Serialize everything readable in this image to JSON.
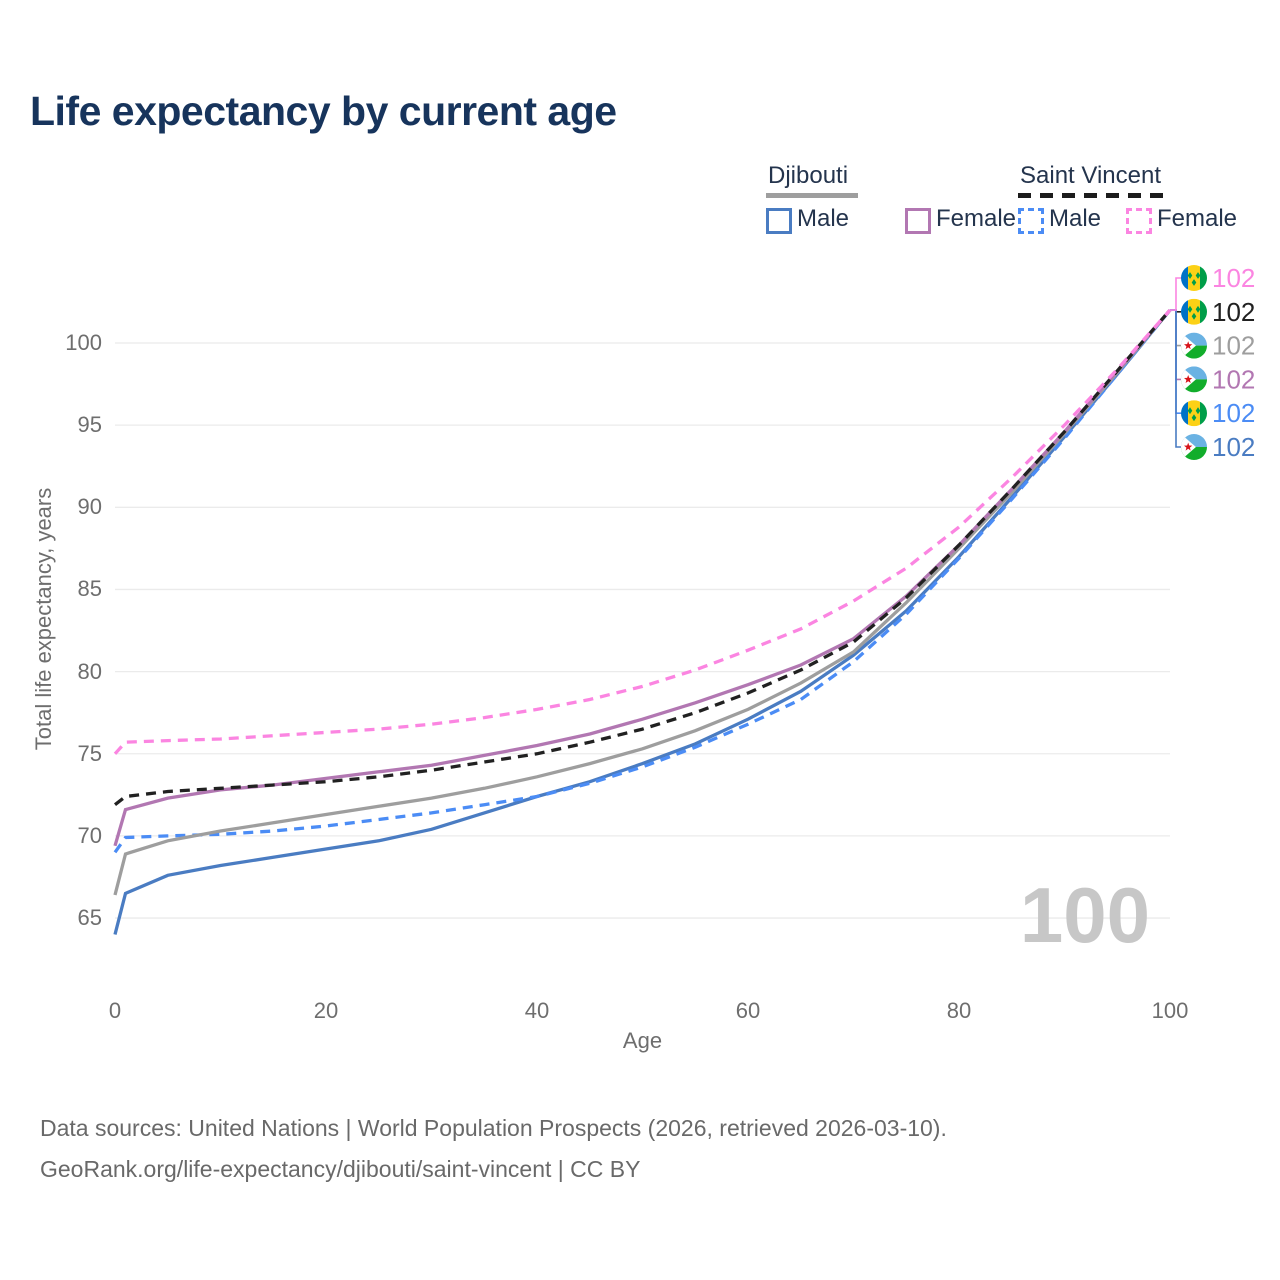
{
  "header": {
    "title": "Life expectancy by current age"
  },
  "legend": {
    "groups": [
      {
        "id": "djibouti",
        "title": "Djibouti",
        "line_style": "solid",
        "line_color": "#9e9e9e",
        "items": [
          {
            "label": "Male",
            "series": "dj_male"
          },
          {
            "label": "Female",
            "series": "dj_female"
          }
        ]
      },
      {
        "id": "saint-vincent",
        "title": "Saint Vincent",
        "line_style": "dashed",
        "line_color": "#1c1c1c",
        "items": [
          {
            "label": "Male",
            "series": "sv_male"
          },
          {
            "label": "Female",
            "series": "sv_female"
          }
        ]
      }
    ]
  },
  "chart_data": {
    "type": "line",
    "title": "Life expectancy by current age",
    "xlabel": "Age",
    "ylabel": "Total life expectancy, years",
    "xlim": [
      0,
      100
    ],
    "ylim": [
      63,
      103
    ],
    "x_ticks": [
      0,
      20,
      40,
      60,
      80,
      100
    ],
    "y_ticks": [
      65,
      70,
      75,
      80,
      85,
      90,
      95,
      100
    ],
    "grid": "horizontal",
    "legend_position": "top-right",
    "watermark": "100",
    "ages": [
      0,
      1,
      5,
      10,
      15,
      20,
      25,
      30,
      35,
      40,
      45,
      50,
      55,
      60,
      65,
      70,
      75,
      80,
      85,
      90,
      95,
      100
    ],
    "series": [
      {
        "id": "dj_male",
        "name": "Djibouti Male",
        "country": "Djibouti",
        "sex": "Male",
        "color": "#4a7cc2",
        "dash": "solid",
        "values": [
          64.0,
          66.5,
          67.6,
          68.2,
          68.7,
          69.2,
          69.7,
          70.4,
          71.4,
          72.4,
          73.3,
          74.4,
          75.6,
          77.1,
          78.8,
          81.0,
          83.7,
          87.0,
          90.6,
          94.3,
          98.1,
          102
        ]
      },
      {
        "id": "sv_male",
        "name": "Saint Vincent Male",
        "country": "Saint Vincent",
        "sex": "Male",
        "color": "#4b8cf5",
        "dash": "dashed",
        "values": [
          69.0,
          69.9,
          70.0,
          70.1,
          70.3,
          70.6,
          71.0,
          71.4,
          71.9,
          72.4,
          73.2,
          74.2,
          75.4,
          76.8,
          78.3,
          80.6,
          83.5,
          86.9,
          90.5,
          94.2,
          98.1,
          102
        ]
      },
      {
        "id": "dj_total",
        "name": "Djibouti Total",
        "country": "Djibouti",
        "sex": "Total",
        "color": "#9e9e9e",
        "dash": "solid",
        "values": [
          66.4,
          68.9,
          69.7,
          70.3,
          70.8,
          71.3,
          71.8,
          72.3,
          72.9,
          73.6,
          74.4,
          75.3,
          76.4,
          77.7,
          79.3,
          81.2,
          84.2,
          87.5,
          90.9,
          94.5,
          98.2,
          102
        ]
      },
      {
        "id": "dj_female",
        "name": "Djibouti Female",
        "country": "Djibouti",
        "sex": "Female",
        "color": "#b277b2",
        "dash": "solid",
        "values": [
          69.4,
          71.6,
          72.3,
          72.8,
          73.1,
          73.5,
          73.9,
          74.3,
          74.9,
          75.5,
          76.2,
          77.1,
          78.1,
          79.2,
          80.4,
          82.0,
          84.6,
          87.7,
          91.1,
          94.6,
          98.3,
          102
        ]
      },
      {
        "id": "sv_total",
        "name": "Saint Vincent Total",
        "country": "Saint Vincent",
        "sex": "Total",
        "color": "#212121",
        "dash": "dashed",
        "values": [
          71.9,
          72.4,
          72.7,
          72.9,
          73.1,
          73.3,
          73.6,
          74.0,
          74.5,
          75.0,
          75.7,
          76.5,
          77.5,
          78.7,
          80.1,
          81.8,
          84.5,
          87.7,
          91.1,
          94.6,
          98.3,
          102
        ]
      },
      {
        "id": "sv_female",
        "name": "Saint Vincent Female",
        "country": "Saint Vincent",
        "sex": "Female",
        "color": "#fb85e1",
        "dash": "dashed",
        "values": [
          75.0,
          75.7,
          75.8,
          75.9,
          76.1,
          76.3,
          76.5,
          76.8,
          77.2,
          77.7,
          78.3,
          79.1,
          80.1,
          81.3,
          82.6,
          84.3,
          86.3,
          88.8,
          91.8,
          95.0,
          98.4,
          102
        ]
      }
    ],
    "end_labels": [
      {
        "series": "sv_female",
        "flag": "saint-vincent",
        "value": "102"
      },
      {
        "series": "sv_total",
        "flag": "saint-vincent",
        "value": "102"
      },
      {
        "series": "dj_total",
        "flag": "djibouti",
        "value": "102"
      },
      {
        "series": "dj_female",
        "flag": "djibouti",
        "value": "102"
      },
      {
        "series": "sv_male",
        "flag": "saint-vincent",
        "value": "102"
      },
      {
        "series": "dj_male",
        "flag": "djibouti",
        "value": "102"
      }
    ]
  },
  "footer": {
    "line1": "Data sources: United Nations | World Population Prospects (2026, retrieved 2026-03-10).",
    "line2": "GeoRank.org/life-expectancy/djibouti/saint-vincent | CC BY"
  }
}
